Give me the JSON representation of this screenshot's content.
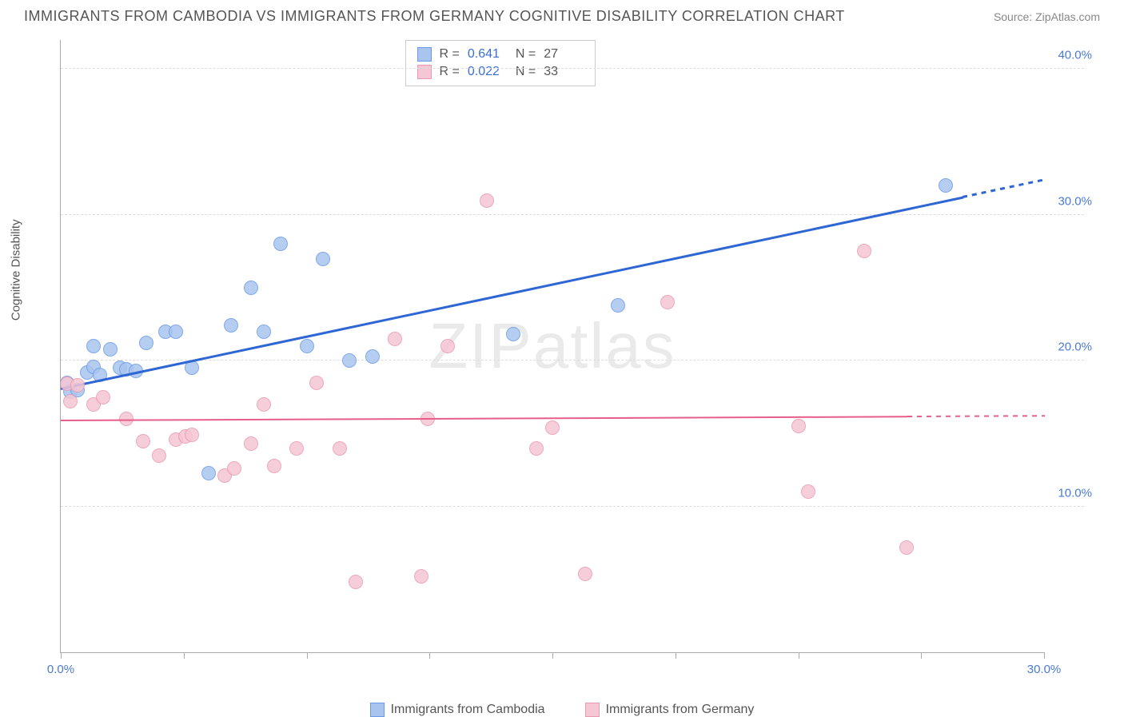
{
  "title": "IMMIGRANTS FROM CAMBODIA VS IMMIGRANTS FROM GERMANY COGNITIVE DISABILITY CORRELATION CHART",
  "source_label": "Source: ",
  "source_name": "ZipAtlas.com",
  "y_axis_label": "Cognitive Disability",
  "watermark": "ZIPatlas",
  "chart": {
    "type": "scatter",
    "xlim": [
      0,
      30
    ],
    "ylim": [
      0,
      42
    ],
    "x_ticks": [
      0,
      3.75,
      7.5,
      11.25,
      15,
      18.75,
      22.5,
      26.25,
      30
    ],
    "x_tick_labels": {
      "0": "0.0%",
      "30": "30.0%"
    },
    "y_gridlines": [
      10,
      20,
      30,
      40
    ],
    "y_tick_labels": {
      "10": "10.0%",
      "20": "20.0%",
      "30": "30.0%",
      "40": "40.0%"
    },
    "background_color": "#ffffff",
    "grid_color": "#dddddd",
    "axis_color": "#aaaaaa",
    "tick_label_color": "#4a7bd0",
    "marker_radius": 9,
    "marker_border_width": 1,
    "marker_fill_opacity": 0.35,
    "series": [
      {
        "id": "cambodia",
        "label": "Immigrants from Cambodia",
        "color_border": "#6b9be8",
        "color_fill": "#a9c5ef",
        "trend_color": "#2e66d4",
        "trend_width": 2.5,
        "trend_dash_after_data": true,
        "R": 0.641,
        "N": 27,
        "trend": {
          "x1": 0,
          "y1": 18.2,
          "x2": 30,
          "y2": 32.5
        },
        "data_xmax": 27.5,
        "points": [
          [
            0.2,
            18.5
          ],
          [
            0.3,
            17.9
          ],
          [
            0.5,
            18.0
          ],
          [
            0.8,
            19.2
          ],
          [
            1.0,
            19.6
          ],
          [
            1.2,
            19.0
          ],
          [
            1.5,
            20.8
          ],
          [
            1.8,
            19.5
          ],
          [
            2.0,
            19.4
          ],
          [
            2.3,
            19.3
          ],
          [
            2.6,
            21.2
          ],
          [
            3.2,
            22.0
          ],
          [
            3.5,
            22.0
          ],
          [
            4.0,
            19.5
          ],
          [
            4.5,
            12.3
          ],
          [
            5.2,
            22.4
          ],
          [
            5.8,
            25.0
          ],
          [
            6.2,
            22.0
          ],
          [
            6.7,
            28.0
          ],
          [
            7.5,
            21.0
          ],
          [
            8.0,
            27.0
          ],
          [
            8.8,
            20.0
          ],
          [
            9.5,
            20.3
          ],
          [
            13.8,
            21.8
          ],
          [
            17.0,
            23.8
          ],
          [
            27.0,
            32.0
          ],
          [
            1.0,
            21.0
          ]
        ]
      },
      {
        "id": "germany",
        "label": "Immigrants from Germany",
        "color_border": "#e89bb0",
        "color_fill": "#f5c6d3",
        "trend_color": "#e85d8a",
        "trend_width": 2,
        "trend_dash_after_data": true,
        "R": 0.022,
        "N": 33,
        "trend": {
          "x1": 0,
          "y1": 16.0,
          "x2": 30,
          "y2": 16.3
        },
        "data_xmax": 25.8,
        "points": [
          [
            0.2,
            18.4
          ],
          [
            0.3,
            17.2
          ],
          [
            0.5,
            18.3
          ],
          [
            1.0,
            17.0
          ],
          [
            1.3,
            17.5
          ],
          [
            2.0,
            16.0
          ],
          [
            2.5,
            14.5
          ],
          [
            3.0,
            13.5
          ],
          [
            3.5,
            14.6
          ],
          [
            3.8,
            14.8
          ],
          [
            4.0,
            14.9
          ],
          [
            5.0,
            12.1
          ],
          [
            5.3,
            12.6
          ],
          [
            5.8,
            14.3
          ],
          [
            6.2,
            17.0
          ],
          [
            6.5,
            12.8
          ],
          [
            7.2,
            14.0
          ],
          [
            7.8,
            18.5
          ],
          [
            8.5,
            14.0
          ],
          [
            9.0,
            4.8
          ],
          [
            10.2,
            21.5
          ],
          [
            11.0,
            5.2
          ],
          [
            11.2,
            16.0
          ],
          [
            11.8,
            21.0
          ],
          [
            13.0,
            31.0
          ],
          [
            14.5,
            14.0
          ],
          [
            15.0,
            15.4
          ],
          [
            16.0,
            5.4
          ],
          [
            18.5,
            24.0
          ],
          [
            22.5,
            15.5
          ],
          [
            22.8,
            11.0
          ],
          [
            24.5,
            27.5
          ],
          [
            25.8,
            7.2
          ]
        ]
      }
    ]
  },
  "stats_box": {
    "rows": [
      {
        "series": "cambodia",
        "R_label": "R  =",
        "R": "0.641",
        "N_label": "N  =",
        "N": "27"
      },
      {
        "series": "germany",
        "R_label": "R  =",
        "R": "0.022",
        "N_label": "N  =",
        "N": "33"
      }
    ]
  }
}
